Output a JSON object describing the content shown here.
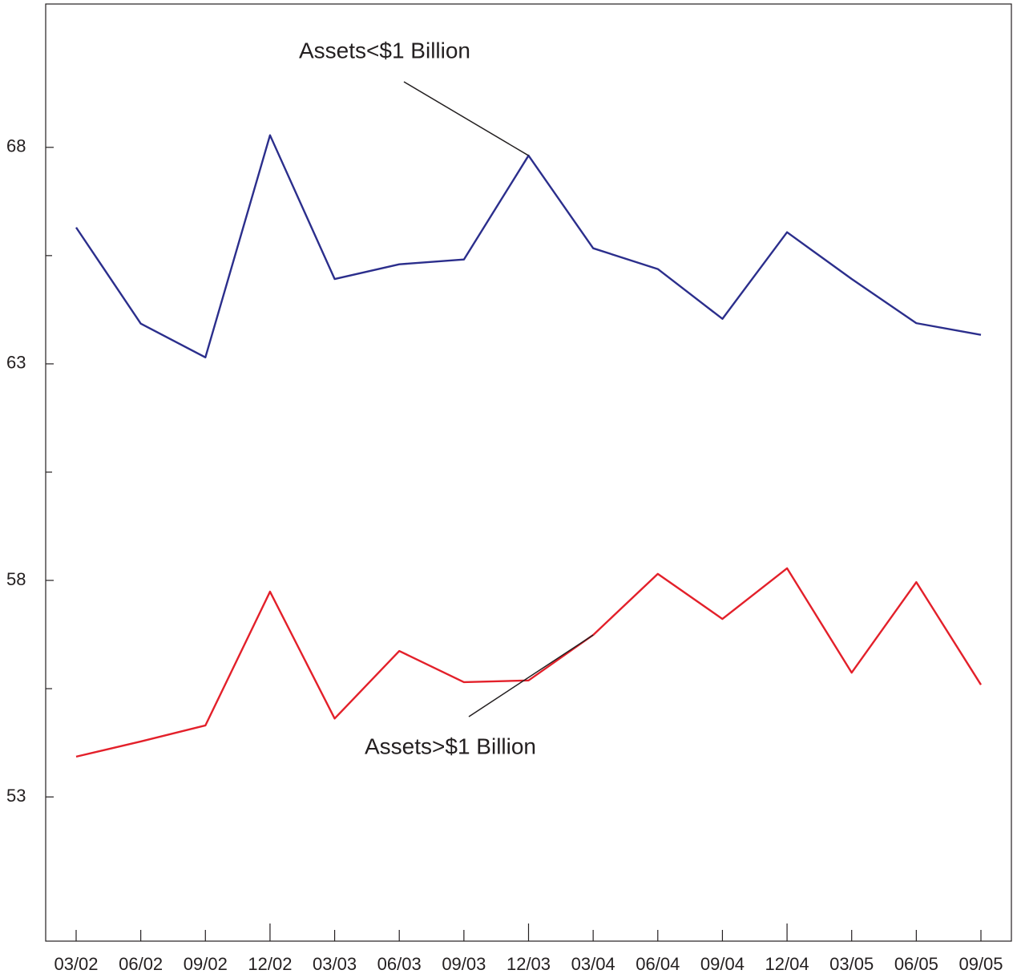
{
  "chart_data": {
    "type": "line",
    "categories": [
      "03/02",
      "06/02",
      "09/02",
      "12/02",
      "03/03",
      "06/03",
      "09/03",
      "12/03",
      "03/04",
      "06/04",
      "09/04",
      "12/04",
      "03/05",
      "06/05",
      "09/05"
    ],
    "series": [
      {
        "name": "Assets<$1 Billion",
        "color": "#2b2e8c",
        "values": [
          66.15,
          63.93,
          63.15,
          68.28,
          64.96,
          65.3,
          65.41,
          67.81,
          65.67,
          65.19,
          64.04,
          66.04,
          64.96,
          63.94,
          63.67
        ]
      },
      {
        "name": "Assets>$1 Billion",
        "color": "#e3202a",
        "values": [
          53.93,
          54.28,
          54.65,
          57.74,
          54.81,
          56.37,
          55.65,
          55.69,
          56.74,
          58.15,
          57.11,
          58.28,
          55.87,
          57.96,
          55.59
        ]
      }
    ],
    "ylim": [
      49.67,
      71.31
    ],
    "yticks": [
      53,
      58,
      63,
      68
    ],
    "yminorticks": [
      55.5,
      60.5,
      65.5
    ],
    "grid": false
  }
}
